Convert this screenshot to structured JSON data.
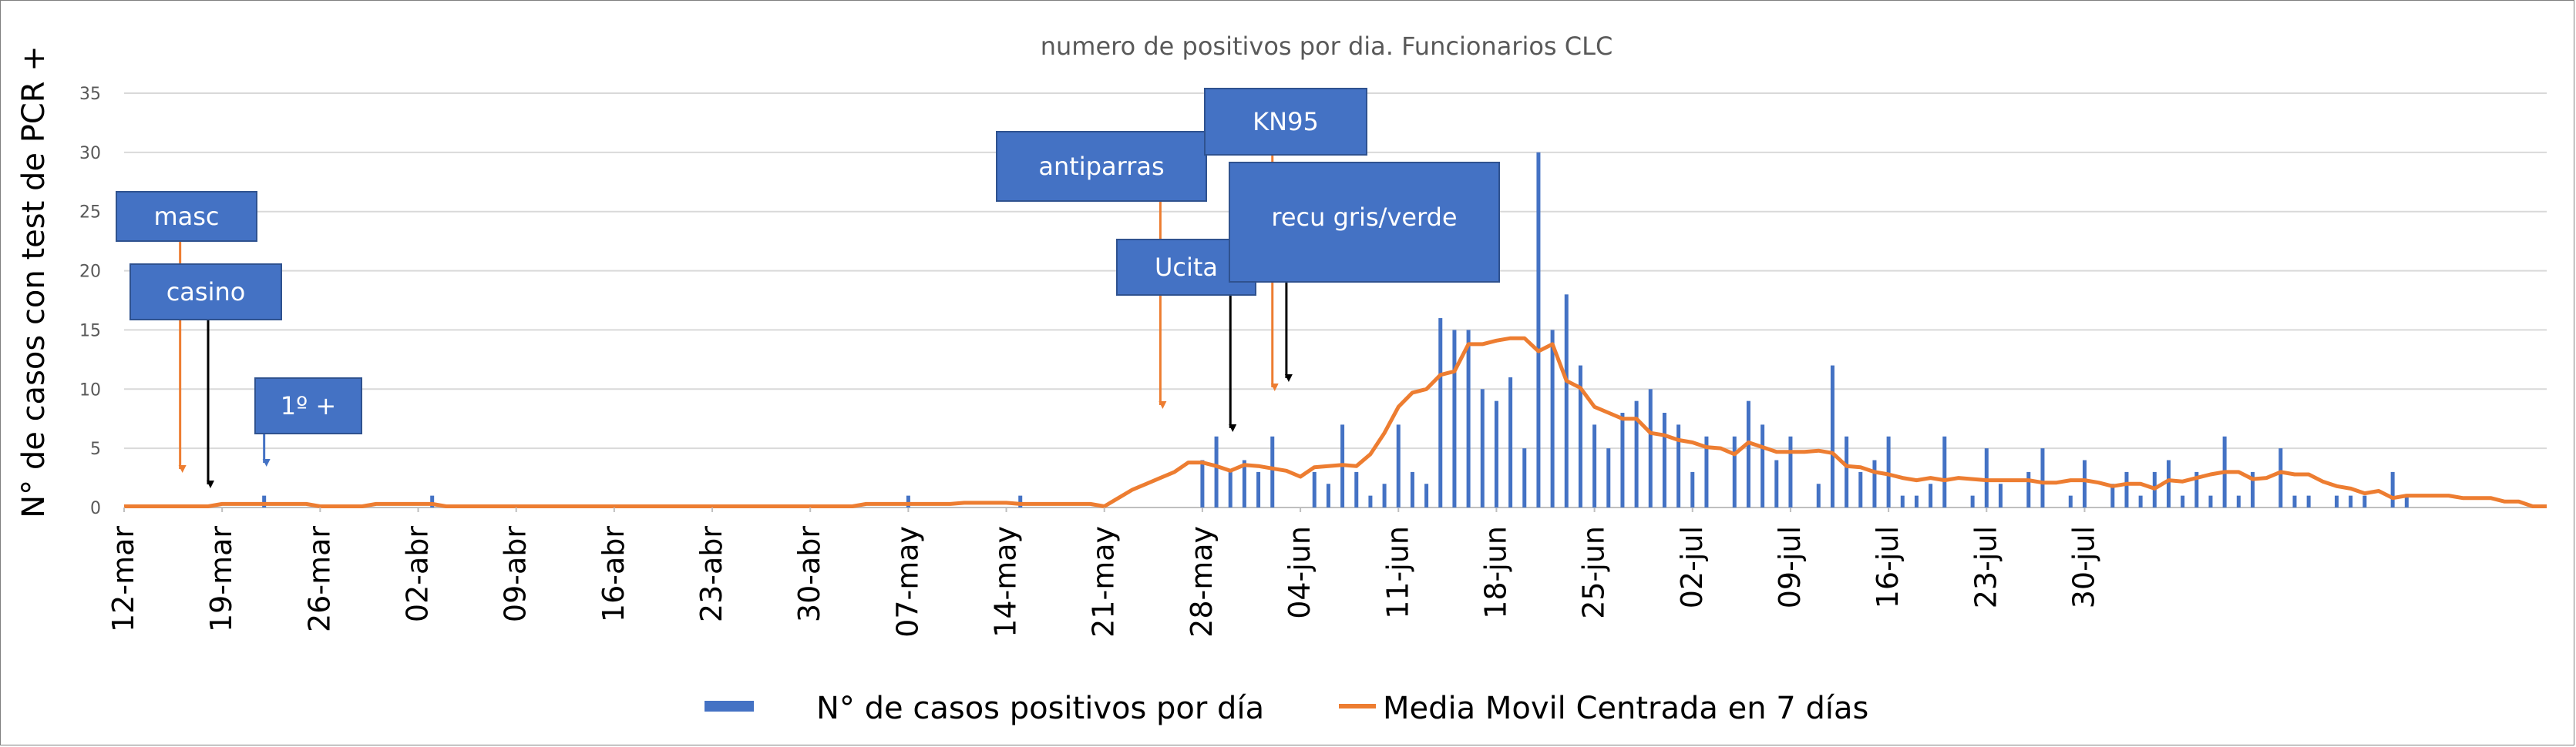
{
  "chart_data": {
    "type": "bar",
    "title": "numero de positivos por dia. Funcionarios CLC",
    "ylabel": "N° de casos con test de PCR +",
    "xlabel": "",
    "ylim": [
      0,
      35
    ],
    "yticks": [
      0,
      5,
      10,
      15,
      20,
      25,
      30,
      35
    ],
    "grid": true,
    "legend_position": "bottom",
    "x_start": "12-mar",
    "x_tick_labels": [
      "12-mar",
      "19-mar",
      "26-mar",
      "02-abr",
      "09-abr",
      "16-abr",
      "23-abr",
      "30-abr",
      "07-may",
      "14-may",
      "21-may",
      "28-may",
      "04-jun",
      "11-jun",
      "18-jun",
      "25-jun",
      "02-jul",
      "09-jul",
      "16-jul",
      "23-jul",
      "30-jul"
    ],
    "series": [
      {
        "name": "N° de casos positivos por día",
        "kind": "bar",
        "color": "#4472C4",
        "values": [
          0,
          0,
          0,
          0,
          0,
          0,
          0,
          0,
          0,
          0,
          1,
          0,
          0,
          0,
          0,
          0,
          0,
          0,
          0,
          0,
          0,
          0,
          1,
          0,
          0,
          0,
          0,
          0,
          0,
          0,
          0,
          0,
          0,
          0,
          0,
          0,
          0,
          0,
          0,
          0,
          0,
          0,
          0,
          0,
          0,
          0,
          0,
          0,
          0,
          0,
          0,
          0,
          0,
          0,
          0,
          0,
          1,
          0,
          0,
          0,
          0,
          0,
          0,
          0,
          1,
          0,
          0,
          0,
          0,
          0,
          0,
          0,
          0,
          0,
          0,
          0,
          0,
          4,
          6,
          3,
          4,
          3,
          6,
          0,
          0,
          3,
          2,
          7,
          3,
          1,
          2,
          7,
          3,
          2,
          16,
          15,
          15,
          10,
          9,
          11,
          5,
          30,
          15,
          18,
          12,
          7,
          5,
          8,
          9,
          10,
          8,
          7,
          3,
          6,
          0,
          6,
          9,
          7,
          4,
          6,
          0,
          2,
          12,
          6,
          3,
          4,
          6,
          1,
          1,
          2,
          6,
          0,
          1,
          5,
          2,
          0,
          3,
          5,
          0,
          1,
          4,
          0,
          2,
          3,
          1,
          3,
          4,
          1,
          3,
          1,
          6,
          1,
          3,
          0,
          5,
          1,
          1,
          0,
          1,
          1,
          1,
          0,
          3,
          1,
          0,
          0,
          0,
          0,
          0,
          0,
          0,
          0
        ],
        "display_start_index": 72
      },
      {
        "name": "Media Movil Centrada en 7 días",
        "kind": "line",
        "color": "#ED7D31",
        "values": [
          0.1,
          0.1,
          0.1,
          0.1,
          0.1,
          0.1,
          0.1,
          0.3,
          0.3,
          0.3,
          0.3,
          0.3,
          0.3,
          0.3,
          0.1,
          0.1,
          0.1,
          0.1,
          0.3,
          0.3,
          0.3,
          0.3,
          0.3,
          0.1,
          0.1,
          0.1,
          0.1,
          0.1,
          0.1,
          0.1,
          0.1,
          0.1,
          0.1,
          0.1,
          0.1,
          0.1,
          0.1,
          0.1,
          0.1,
          0.1,
          0.1,
          0.1,
          0.1,
          0.1,
          0.1,
          0.1,
          0.1,
          0.1,
          0.1,
          0.1,
          0.1,
          0.1,
          0.1,
          0.3,
          0.3,
          0.3,
          0.3,
          0.3,
          0.3,
          0.3,
          0.4,
          0.4,
          0.4,
          0.4,
          0.3,
          0.3,
          0.3,
          0.3,
          0.3,
          0.3,
          0.1,
          0.8,
          1.5,
          2,
          2.5,
          3,
          3.8,
          3.8,
          3.5,
          3.1,
          3.6,
          3.5,
          3.3,
          3.1,
          2.6,
          3.4,
          3.5,
          3.6,
          3.5,
          4.5,
          6.3,
          8.5,
          9.7,
          10,
          11.2,
          11.5,
          13.8,
          13.8,
          14.1,
          14.3,
          14.3,
          13.2,
          13.8,
          10.7,
          10.1,
          8.5,
          8,
          7.5,
          7.5,
          6.3,
          6.1,
          5.7,
          5.5,
          5.1,
          5,
          4.5,
          5.5,
          5.1,
          4.7,
          4.7,
          4.7,
          4.8,
          4.6,
          3.5,
          3.4,
          3,
          2.8,
          2.5,
          2.3,
          2.5,
          2.3,
          2.5,
          2.4,
          2.3,
          2.3,
          2.3,
          2.3,
          2.1,
          2.1,
          2.3,
          2.3,
          2.1,
          1.8,
          2,
          2,
          1.6,
          2.3,
          2.2,
          2.5,
          2.8,
          3,
          3,
          2.4,
          2.5,
          3,
          2.8,
          2.8,
          2.2,
          1.8,
          1.6,
          1.2,
          1.4,
          0.8,
          1,
          1,
          1,
          1,
          0.8,
          0.8,
          0.8,
          0.5,
          0.5,
          0.1,
          0.1
        ]
      }
    ],
    "annotations": [
      {
        "label": "masc",
        "arrow_date_index": 4,
        "arrow_color": "#ED7D31"
      },
      {
        "label": "casino",
        "arrow_date_index": 6,
        "arrow_color": "#000000"
      },
      {
        "label": "1º +",
        "arrow_date_index": 10,
        "arrow_color": "#4472C4"
      },
      {
        "label": "antiparras",
        "arrow_date_index": 74,
        "arrow_color": "#ED7D31"
      },
      {
        "label": "Ucita",
        "arrow_date_index": 79,
        "arrow_color": "#000000"
      },
      {
        "label": "KN95",
        "arrow_date_index": 82,
        "arrow_color": "#ED7D31"
      },
      {
        "label": "recu gris/verde",
        "arrow_date_index": 83,
        "arrow_color": "#000000"
      }
    ]
  }
}
